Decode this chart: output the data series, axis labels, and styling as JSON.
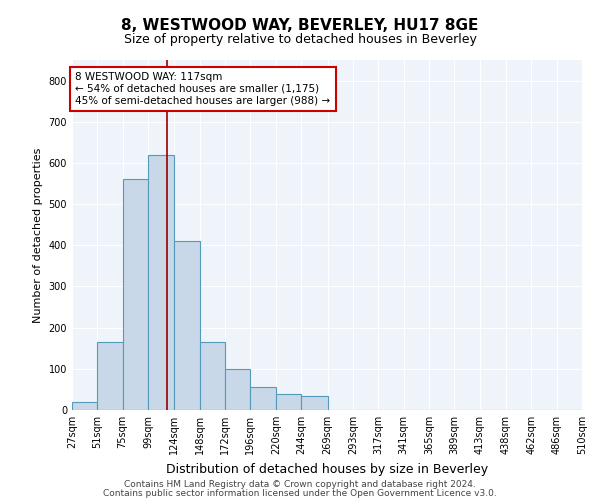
{
  "title": "8, WESTWOOD WAY, BEVERLEY, HU17 8GE",
  "subtitle": "Size of property relative to detached houses in Beverley",
  "xlabel": "Distribution of detached houses by size in Beverley",
  "ylabel": "Number of detached properties",
  "bin_edges": [
    27,
    51,
    75,
    99,
    124,
    148,
    172,
    196,
    220,
    244,
    269,
    293,
    317,
    341,
    365,
    389,
    413,
    438,
    462,
    486,
    510
  ],
  "bar_heights": [
    20,
    165,
    560,
    620,
    410,
    165,
    100,
    55,
    40,
    35,
    0,
    0,
    0,
    0,
    0,
    0,
    0,
    0,
    0,
    0
  ],
  "bar_color": "#c8d8e8",
  "bar_edge_color": "#5599bb",
  "vline_x": 117,
  "vline_color": "#990000",
  "annotation_line1": "8 WESTWOOD WAY: 117sqm",
  "annotation_line2": "← 54% of detached houses are smaller (1,175)",
  "annotation_line3": "45% of semi-detached houses are larger (988) →",
  "annotation_box_color": "white",
  "annotation_box_edge_color": "#cc0000",
  "ylim": [
    0,
    850
  ],
  "yticks": [
    0,
    100,
    200,
    300,
    400,
    500,
    600,
    700,
    800
  ],
  "footer_line1": "Contains HM Land Registry data © Crown copyright and database right 2024.",
  "footer_line2": "Contains public sector information licensed under the Open Government Licence v3.0.",
  "background_color": "#eef4fa",
  "grid_color": "white",
  "title_fontsize": 11,
  "subtitle_fontsize": 9,
  "ylabel_fontsize": 8,
  "xlabel_fontsize": 9,
  "tick_fontsize": 7,
  "annotation_fontsize": 7.5,
  "footer_fontsize": 6.5
}
